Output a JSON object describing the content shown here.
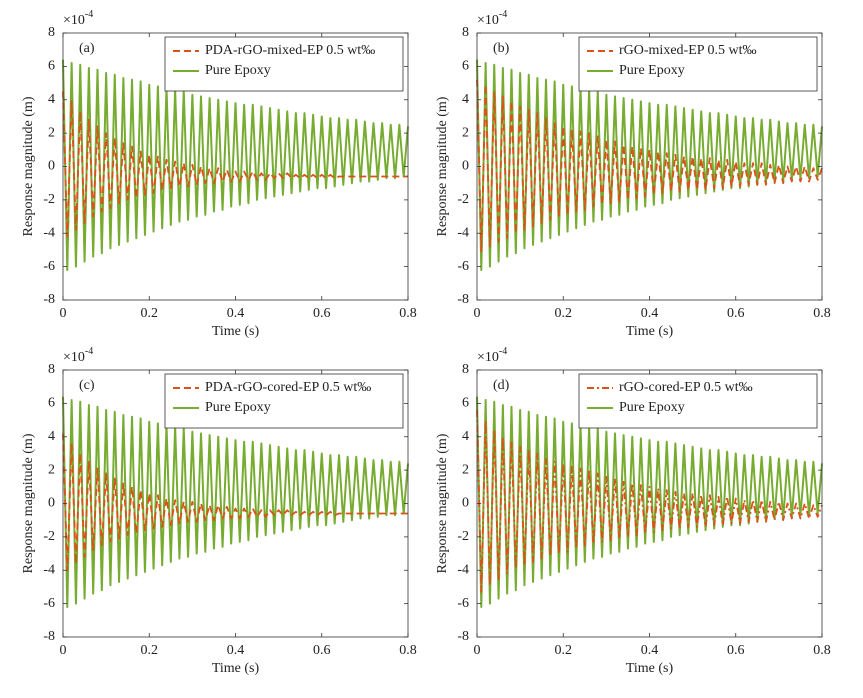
{
  "chart_data": [
    {
      "type": "line",
      "panel_label": "(a)",
      "xlabel": "Time (s)",
      "ylabel": "Response magnitude (m)",
      "y_scale_label": {
        "base": "×10",
        "exponent": "-4"
      },
      "xlim": [
        0,
        0.8
      ],
      "xticks": [
        0,
        0.2,
        0.4,
        0.6,
        0.8
      ],
      "ylim": [
        -8,
        8
      ],
      "yticks": [
        -8,
        -6,
        -4,
        -2,
        0,
        2,
        4,
        6,
        8
      ],
      "legend": "northeast",
      "grid": false,
      "x": [
        0,
        0.01,
        0.02,
        0.03,
        0.04,
        0.05,
        0.06,
        0.07,
        0.08,
        0.09,
        0.1,
        0.11,
        0.12,
        0.13,
        0.14,
        0.15,
        0.16,
        0.17,
        0.18,
        0.19,
        0.2,
        0.21,
        0.22,
        0.23,
        0.24,
        0.25,
        0.26,
        0.27,
        0.28,
        0.29,
        0.3,
        0.31,
        0.32,
        0.33,
        0.34,
        0.35,
        0.36,
        0.37,
        0.38,
        0.39,
        0.4,
        0.41,
        0.42,
        0.43,
        0.44,
        0.45,
        0.46,
        0.47,
        0.48,
        0.49,
        0.5,
        0.51,
        0.52,
        0.53,
        0.54,
        0.55,
        0.56,
        0.57,
        0.58,
        0.59,
        0.6,
        0.61,
        0.62,
        0.63,
        0.64,
        0.65,
        0.66,
        0.67,
        0.68,
        0.69,
        0.7,
        0.71,
        0.72,
        0.73,
        0.74,
        0.75,
        0.76,
        0.77,
        0.78,
        0.79,
        0.8
      ],
      "series": [
        {
          "name": "PDA-rGO-mixed-EP 0.5 wt‰",
          "color": "#d95319",
          "dash": "dashed",
          "values": [
            4.5,
            -4.2,
            3.9,
            -3.8,
            3.3,
            -3.4,
            2.8,
            -3.0,
            2.4,
            -2.7,
            2.0,
            -2.5,
            1.7,
            -2.2,
            1.4,
            -2.0,
            1.2,
            -1.9,
            0.9,
            -1.7,
            0.7,
            -1.6,
            0.6,
            -1.4,
            0.4,
            -1.3,
            0.3,
            -1.2,
            0.2,
            -1.2,
            0.1,
            -1.1,
            0.0,
            -1.0,
            -0.1,
            -1.0,
            -0.1,
            -0.9,
            -0.2,
            -0.9,
            -0.3,
            -0.9,
            -0.3,
            -0.8,
            -0.3,
            -0.8,
            -0.4,
            -0.8,
            -0.4,
            -0.7,
            -0.4,
            -0.7,
            -0.4,
            -0.7,
            -0.5,
            -0.7,
            -0.5,
            -0.7,
            -0.5,
            -0.7,
            -0.5,
            -0.7,
            -0.5,
            -0.7,
            -0.6,
            -0.6,
            -0.6,
            -0.6,
            -0.6,
            -0.6,
            -0.6,
            -0.6,
            -0.6,
            -0.6,
            -0.6,
            -0.6,
            -0.6,
            -0.6,
            -0.6,
            -0.6,
            -0.6
          ]
        },
        {
          "name": "Pure Epoxy",
          "color": "#77ac30",
          "dash": "solid",
          "values": [
            6.4,
            -6.2,
            6.2,
            -6.0,
            6.1,
            -5.7,
            5.9,
            -5.4,
            5.8,
            -5.2,
            5.6,
            -4.9,
            5.5,
            -4.7,
            5.3,
            -4.5,
            5.2,
            -4.3,
            5.1,
            -4.1,
            4.9,
            -3.9,
            4.8,
            -3.7,
            4.7,
            -3.5,
            4.6,
            -3.3,
            4.5,
            -3.2,
            4.3,
            -3.0,
            4.2,
            -2.9,
            4.1,
            -2.7,
            4.0,
            -2.6,
            3.9,
            -2.4,
            3.8,
            -2.3,
            3.7,
            -2.2,
            3.7,
            -2.0,
            3.6,
            -1.9,
            3.5,
            -1.8,
            3.4,
            -1.7,
            3.3,
            -1.6,
            3.2,
            -1.5,
            3.2,
            -1.4,
            3.1,
            -1.3,
            3.0,
            -1.3,
            2.9,
            -1.2,
            2.9,
            -1.1,
            2.8,
            -1.0,
            2.8,
            -0.9,
            2.7,
            -0.9,
            2.6,
            -0.8,
            2.6,
            -0.7,
            2.5,
            -0.7,
            2.5,
            -0.6,
            2.4
          ]
        }
      ]
    },
    {
      "type": "line",
      "panel_label": "(b)",
      "xlabel": "Time (s)",
      "ylabel": "Response magnitude (m)",
      "y_scale_label": {
        "base": "×10",
        "exponent": "-4"
      },
      "xlim": [
        0,
        0.8
      ],
      "xticks": [
        0,
        0.2,
        0.4,
        0.6,
        0.8
      ],
      "ylim": [
        -8,
        8
      ],
      "yticks": [
        -8,
        -6,
        -4,
        -2,
        0,
        2,
        4,
        6,
        8
      ],
      "legend": "northeast",
      "grid": false,
      "x": [
        0,
        0.01,
        0.02,
        0.03,
        0.04,
        0.05,
        0.06,
        0.07,
        0.08,
        0.09,
        0.1,
        0.11,
        0.12,
        0.13,
        0.14,
        0.15,
        0.16,
        0.17,
        0.18,
        0.19,
        0.2,
        0.21,
        0.22,
        0.23,
        0.24,
        0.25,
        0.26,
        0.27,
        0.28,
        0.29,
        0.3,
        0.31,
        0.32,
        0.33,
        0.34,
        0.35,
        0.36,
        0.37,
        0.38,
        0.39,
        0.4,
        0.41,
        0.42,
        0.43,
        0.44,
        0.45,
        0.46,
        0.47,
        0.48,
        0.49,
        0.5,
        0.51,
        0.52,
        0.53,
        0.54,
        0.55,
        0.56,
        0.57,
        0.58,
        0.59,
        0.6,
        0.61,
        0.62,
        0.63,
        0.64,
        0.65,
        0.66,
        0.67,
        0.68,
        0.69,
        0.7,
        0.71,
        0.72,
        0.73,
        0.74,
        0.75,
        0.76,
        0.77,
        0.78,
        0.79,
        0.8
      ],
      "series": [
        {
          "name": "rGO-mixed-EP 0.5 wt‰",
          "color": "#d95319",
          "dash": "dashed",
          "values": [
            5.2,
            -5.1,
            4.9,
            -4.8,
            4.5,
            -4.5,
            4.2,
            -4.3,
            3.9,
            -4.0,
            3.6,
            -3.8,
            3.4,
            -3.6,
            3.2,
            -3.4,
            2.9,
            -3.2,
            2.6,
            -3.0,
            2.4,
            -2.9,
            2.2,
            -2.7,
            2.1,
            -2.6,
            2.0,
            -2.4,
            1.8,
            -2.3,
            1.6,
            -2.2,
            1.5,
            -2.1,
            1.3,
            -2.0,
            1.2,
            -1.9,
            1.1,
            -1.8,
            1.0,
            -1.7,
            0.9,
            -1.6,
            0.8,
            -1.5,
            0.7,
            -1.5,
            0.6,
            -1.4,
            0.6,
            -1.4,
            0.5,
            -1.4,
            0.5,
            -1.3,
            0.4,
            -1.3,
            0.4,
            -1.2,
            0.3,
            -1.2,
            0.2,
            -1.1,
            0.2,
            -1.1,
            0.2,
            -1.1,
            0.1,
            -1.0,
            0.1,
            -1.0,
            0.0,
            -0.9,
            0.0,
            -0.9,
            0.0,
            -0.9,
            -0.1,
            -0.8,
            -0.1
          ]
        },
        {
          "name": "Pure Epoxy",
          "color": "#77ac30",
          "dash": "solid",
          "values": [
            6.4,
            -6.2,
            6.2,
            -6.0,
            6.1,
            -5.7,
            5.9,
            -5.4,
            5.8,
            -5.2,
            5.6,
            -4.9,
            5.5,
            -4.7,
            5.3,
            -4.5,
            5.2,
            -4.3,
            5.1,
            -4.1,
            4.9,
            -3.9,
            4.8,
            -3.7,
            4.7,
            -3.5,
            4.6,
            -3.3,
            4.5,
            -3.2,
            4.3,
            -3.0,
            4.2,
            -2.9,
            4.1,
            -2.7,
            4.0,
            -2.6,
            3.9,
            -2.4,
            3.8,
            -2.3,
            3.7,
            -2.2,
            3.7,
            -2.0,
            3.6,
            -1.9,
            3.5,
            -1.8,
            3.4,
            -1.7,
            3.3,
            -1.6,
            3.2,
            -1.5,
            3.2,
            -1.4,
            3.1,
            -1.3,
            3.0,
            -1.3,
            2.9,
            -1.2,
            2.9,
            -1.1,
            2.8,
            -1.0,
            2.8,
            -0.9,
            2.7,
            -0.9,
            2.6,
            -0.8,
            2.6,
            -0.7,
            2.5,
            -0.7,
            2.5,
            -0.6,
            2.4
          ]
        }
      ]
    },
    {
      "type": "line",
      "panel_label": "(c)",
      "xlabel": "Time (s)",
      "ylabel": "Response magnitude (m)",
      "y_scale_label": {
        "base": "×10",
        "exponent": "-4"
      },
      "xlim": [
        0,
        0.8
      ],
      "xticks": [
        0,
        0.2,
        0.4,
        0.6,
        0.8
      ],
      "ylim": [
        -8,
        8
      ],
      "yticks": [
        -8,
        -6,
        -4,
        -2,
        0,
        2,
        4,
        6,
        8
      ],
      "legend": "northeast",
      "grid": false,
      "x": [
        0,
        0.01,
        0.02,
        0.03,
        0.04,
        0.05,
        0.06,
        0.07,
        0.08,
        0.09,
        0.1,
        0.11,
        0.12,
        0.13,
        0.14,
        0.15,
        0.16,
        0.17,
        0.18,
        0.19,
        0.2,
        0.21,
        0.22,
        0.23,
        0.24,
        0.25,
        0.26,
        0.27,
        0.28,
        0.29,
        0.3,
        0.31,
        0.32,
        0.33,
        0.34,
        0.35,
        0.36,
        0.37,
        0.38,
        0.39,
        0.4,
        0.41,
        0.42,
        0.43,
        0.44,
        0.45,
        0.46,
        0.47,
        0.48,
        0.49,
        0.5,
        0.51,
        0.52,
        0.53,
        0.54,
        0.55,
        0.56,
        0.57,
        0.58,
        0.59,
        0.6,
        0.61,
        0.62,
        0.63,
        0.64,
        0.65,
        0.66,
        0.67,
        0.68,
        0.69,
        0.7,
        0.71,
        0.72,
        0.73,
        0.74,
        0.75,
        0.76,
        0.77,
        0.78,
        0.79,
        0.8
      ],
      "series": [
        {
          "name": "PDA-rGO-cored-EP 0.5 wt‰",
          "color": "#d95319",
          "dash": "dashed",
          "values": [
            4.2,
            -4.0,
            3.6,
            -3.6,
            3.0,
            -3.2,
            2.5,
            -2.8,
            2.1,
            -2.5,
            1.8,
            -2.3,
            1.5,
            -2.1,
            1.2,
            -1.9,
            1.0,
            -1.8,
            0.8,
            -1.6,
            0.6,
            -1.5,
            0.5,
            -1.4,
            0.3,
            -1.3,
            0.2,
            -1.2,
            0.1,
            -1.1,
            0.1,
            -1.1,
            0.0,
            -1.0,
            -0.1,
            -1.0,
            -0.1,
            -0.9,
            -0.2,
            -0.9,
            -0.3,
            -0.9,
            -0.3,
            -0.8,
            -0.3,
            -0.8,
            -0.4,
            -0.8,
            -0.4,
            -0.7,
            -0.4,
            -0.7,
            -0.4,
            -0.7,
            -0.5,
            -0.7,
            -0.5,
            -0.7,
            -0.5,
            -0.7,
            -0.5,
            -0.7,
            -0.5,
            -0.7,
            -0.6,
            -0.6,
            -0.6,
            -0.6,
            -0.6,
            -0.6,
            -0.6,
            -0.6,
            -0.6,
            -0.6,
            -0.6,
            -0.6,
            -0.6,
            -0.6,
            -0.6,
            -0.6,
            -0.6
          ]
        },
        {
          "name": "Pure Epoxy",
          "color": "#77ac30",
          "dash": "solid",
          "values": [
            6.4,
            -6.2,
            6.2,
            -6.0,
            6.1,
            -5.7,
            5.9,
            -5.4,
            5.8,
            -5.2,
            5.6,
            -4.9,
            5.5,
            -4.7,
            5.3,
            -4.5,
            5.2,
            -4.3,
            5.1,
            -4.1,
            4.9,
            -3.9,
            4.8,
            -3.7,
            4.7,
            -3.5,
            4.6,
            -3.3,
            4.5,
            -3.2,
            4.3,
            -3.0,
            4.2,
            -2.9,
            4.1,
            -2.7,
            4.0,
            -2.6,
            3.9,
            -2.4,
            3.8,
            -2.3,
            3.7,
            -2.2,
            3.7,
            -2.0,
            3.6,
            -1.9,
            3.5,
            -1.8,
            3.4,
            -1.7,
            3.3,
            -1.6,
            3.2,
            -1.5,
            3.2,
            -1.4,
            3.1,
            -1.3,
            3.0,
            -1.3,
            2.9,
            -1.2,
            2.9,
            -1.1,
            2.8,
            -1.0,
            2.8,
            -0.9,
            2.7,
            -0.9,
            2.6,
            -0.8,
            2.6,
            -0.7,
            2.5,
            -0.7,
            2.5,
            -0.6,
            2.4
          ]
        }
      ]
    },
    {
      "type": "line",
      "panel_label": "(d)",
      "xlabel": "Time (s)",
      "ylabel": "Response magnitude (m)",
      "y_scale_label": {
        "base": "×10",
        "exponent": "-4"
      },
      "xlim": [
        0,
        0.8
      ],
      "xticks": [
        0,
        0.2,
        0.4,
        0.6,
        0.8
      ],
      "ylim": [
        -8,
        8
      ],
      "yticks": [
        -8,
        -6,
        -4,
        -2,
        0,
        2,
        4,
        6,
        8
      ],
      "legend": "northeast",
      "grid": false,
      "x": [
        0,
        0.01,
        0.02,
        0.03,
        0.04,
        0.05,
        0.06,
        0.07,
        0.08,
        0.09,
        0.1,
        0.11,
        0.12,
        0.13,
        0.14,
        0.15,
        0.16,
        0.17,
        0.18,
        0.19,
        0.2,
        0.21,
        0.22,
        0.23,
        0.24,
        0.25,
        0.26,
        0.27,
        0.28,
        0.29,
        0.3,
        0.31,
        0.32,
        0.33,
        0.34,
        0.35,
        0.36,
        0.37,
        0.38,
        0.39,
        0.4,
        0.41,
        0.42,
        0.43,
        0.44,
        0.45,
        0.46,
        0.47,
        0.48,
        0.49,
        0.5,
        0.51,
        0.52,
        0.53,
        0.54,
        0.55,
        0.56,
        0.57,
        0.58,
        0.59,
        0.6,
        0.61,
        0.62,
        0.63,
        0.64,
        0.65,
        0.66,
        0.67,
        0.68,
        0.69,
        0.7,
        0.71,
        0.72,
        0.73,
        0.74,
        0.75,
        0.76,
        0.77,
        0.78,
        0.79,
        0.8
      ],
      "series": [
        {
          "name": "rGO-cored-EP 0.5 wt‰",
          "color": "#d95319",
          "dash": "dashdot",
          "values": [
            5.6,
            -5.3,
            5.0,
            -4.9,
            4.4,
            -4.6,
            4.0,
            -4.2,
            3.7,
            -3.9,
            3.4,
            -3.7,
            3.2,
            -3.5,
            3.0,
            -3.3,
            2.7,
            -3.1,
            2.5,
            -3.0,
            2.4,
            -2.9,
            2.2,
            -2.7,
            2.1,
            -2.6,
            2.0,
            -2.4,
            1.8,
            -2.3,
            1.6,
            -2.2,
            1.5,
            -2.1,
            1.3,
            -2.0,
            1.2,
            -1.9,
            1.1,
            -1.8,
            1.0,
            -1.7,
            0.9,
            -1.6,
            0.8,
            -1.5,
            0.7,
            -1.5,
            0.6,
            -1.4,
            0.6,
            -1.4,
            0.5,
            -1.4,
            0.5,
            -1.3,
            0.4,
            -1.3,
            0.4,
            -1.2,
            0.3,
            -1.2,
            0.2,
            -1.1,
            0.2,
            -1.1,
            0.2,
            -1.1,
            0.1,
            -1.0,
            0.1,
            -1.0,
            0.0,
            -0.9,
            0.0,
            -0.9,
            0.0,
            -0.9,
            -0.1,
            -0.8,
            -0.1
          ]
        },
        {
          "name": "Pure Epoxy",
          "color": "#77ac30",
          "dash": "solid",
          "values": [
            6.4,
            -6.2,
            6.2,
            -6.0,
            6.1,
            -5.7,
            5.9,
            -5.4,
            5.8,
            -5.2,
            5.6,
            -4.9,
            5.5,
            -4.7,
            5.3,
            -4.5,
            5.2,
            -4.3,
            5.1,
            -4.1,
            4.9,
            -3.9,
            4.8,
            -3.7,
            4.7,
            -3.5,
            4.6,
            -3.3,
            4.5,
            -3.2,
            4.3,
            -3.0,
            4.2,
            -2.9,
            4.1,
            -2.7,
            4.0,
            -2.6,
            3.9,
            -2.4,
            3.8,
            -2.3,
            3.7,
            -2.2,
            3.7,
            -2.0,
            3.6,
            -1.9,
            3.5,
            -1.8,
            3.4,
            -1.7,
            3.3,
            -1.6,
            3.2,
            -1.5,
            3.2,
            -1.4,
            3.1,
            -1.3,
            3.0,
            -1.3,
            2.9,
            -1.2,
            2.9,
            -1.1,
            2.8,
            -1.0,
            2.8,
            -0.9,
            2.7,
            -0.9,
            2.6,
            -0.8,
            2.6,
            -0.7,
            2.5,
            -0.7,
            2.5,
            -0.6,
            2.4
          ]
        }
      ]
    }
  ]
}
